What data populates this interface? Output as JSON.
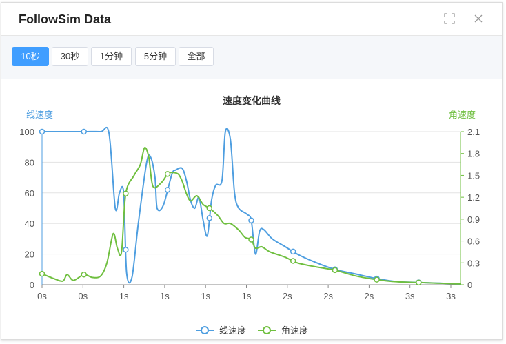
{
  "window": {
    "title": "FollowSim Data"
  },
  "toolbar": {
    "ranges": [
      "10秒",
      "30秒",
      "1分钟",
      "5分钟",
      "全部"
    ],
    "active_index": 0
  },
  "icons": {
    "fullscreen": "fullscreen-icon",
    "close": "close-icon"
  },
  "colors": {
    "linear": "#4e9ee0",
    "angular": "#6fbf3f",
    "active": "#409eff"
  },
  "chart_data": {
    "type": "line",
    "title": "速度变化曲线",
    "y_left_label": "线速度",
    "y_right_label": "角速度",
    "y_left_ticks": [
      "100",
      "80",
      "60",
      "40",
      "20",
      "0"
    ],
    "y_right_ticks": [
      "2.1",
      "1.8",
      "1.5",
      "1.2",
      "0.9",
      "0.6",
      "0.3",
      "0"
    ],
    "x_ticks": [
      "0s",
      "0s",
      "1s",
      "1s",
      "1s",
      "1s",
      "2s",
      "2s",
      "2s",
      "3s",
      "3s"
    ],
    "ylim_left": [
      0,
      100
    ],
    "ylim_right": [
      0,
      2.1
    ],
    "xlim": [
      0,
      10
    ],
    "legend": [
      "线速度",
      "角速度"
    ],
    "legend_position": "bottom",
    "series": [
      {
        "name": "线速度",
        "axis": "left",
        "points": [
          [
            0,
            100
          ],
          [
            0.5,
            100
          ],
          [
            1,
            100
          ],
          [
            1.4,
            100
          ],
          [
            1.6,
            99
          ],
          [
            1.75,
            50
          ],
          [
            1.85,
            60
          ],
          [
            1.95,
            60
          ],
          [
            2.02,
            8
          ],
          [
            2.15,
            5
          ],
          [
            2.3,
            40
          ],
          [
            2.5,
            80
          ],
          [
            2.6,
            83
          ],
          [
            2.7,
            70
          ],
          [
            2.75,
            50
          ],
          [
            2.9,
            52
          ],
          [
            3.1,
            72
          ],
          [
            3.2,
            75
          ],
          [
            3.35,
            76
          ],
          [
            3.45,
            68
          ],
          [
            3.55,
            55
          ],
          [
            3.65,
            50
          ],
          [
            3.75,
            57
          ],
          [
            3.85,
            42
          ],
          [
            3.95,
            32
          ],
          [
            4.05,
            55
          ],
          [
            4.15,
            65
          ],
          [
            4.3,
            68
          ],
          [
            4.38,
            100
          ],
          [
            4.5,
            95
          ],
          [
            4.6,
            60
          ],
          [
            4.7,
            50
          ],
          [
            4.9,
            46
          ],
          [
            5.0,
            42
          ],
          [
            5.1,
            20
          ],
          [
            5.2,
            35
          ],
          [
            5.3,
            36
          ],
          [
            5.5,
            30
          ],
          [
            5.8,
            25
          ],
          [
            6.1,
            20
          ],
          [
            6.5,
            15
          ],
          [
            7,
            10
          ],
          [
            7.5,
            7
          ],
          [
            8,
            4
          ],
          [
            8.5,
            2
          ],
          [
            9,
            1.5
          ],
          [
            9.5,
            1
          ],
          [
            10,
            0.5
          ]
        ]
      },
      {
        "name": "角速度",
        "axis": "right",
        "points": [
          [
            0,
            0.15
          ],
          [
            0.3,
            0.08
          ],
          [
            0.5,
            0.05
          ],
          [
            0.6,
            0.14
          ],
          [
            0.75,
            0.06
          ],
          [
            1.0,
            0.14
          ],
          [
            1.2,
            0.1
          ],
          [
            1.4,
            0.12
          ],
          [
            1.55,
            0.3
          ],
          [
            1.7,
            0.7
          ],
          [
            1.8,
            0.5
          ],
          [
            1.9,
            0.45
          ],
          [
            2.0,
            1.25
          ],
          [
            2.2,
            1.5
          ],
          [
            2.35,
            1.65
          ],
          [
            2.45,
            1.88
          ],
          [
            2.55,
            1.75
          ],
          [
            2.65,
            1.35
          ],
          [
            2.85,
            1.4
          ],
          [
            3.0,
            1.52
          ],
          [
            3.1,
            1.54
          ],
          [
            3.25,
            1.52
          ],
          [
            3.35,
            1.42
          ],
          [
            3.45,
            1.25
          ],
          [
            3.55,
            1.15
          ],
          [
            3.7,
            1.22
          ],
          [
            3.85,
            1.1
          ],
          [
            4.0,
            1.05
          ],
          [
            4.2,
            0.95
          ],
          [
            4.35,
            0.84
          ],
          [
            4.5,
            0.84
          ],
          [
            4.7,
            0.75
          ],
          [
            4.85,
            0.65
          ],
          [
            5.0,
            0.62
          ],
          [
            5.1,
            0.5
          ],
          [
            5.25,
            0.52
          ],
          [
            5.45,
            0.45
          ],
          [
            5.8,
            0.38
          ],
          [
            6.1,
            0.3
          ],
          [
            6.5,
            0.25
          ],
          [
            7,
            0.2
          ],
          [
            7.5,
            0.12
          ],
          [
            8,
            0.07
          ],
          [
            8.5,
            0.04
          ],
          [
            9,
            0.03
          ],
          [
            9.5,
            0.02
          ],
          [
            10,
            0.01
          ]
        ]
      }
    ],
    "markers": [
      {
        "series": "线速度",
        "x": [
          0,
          1,
          2,
          3,
          4,
          5,
          6,
          7,
          8,
          9
        ]
      },
      {
        "series": "角速度",
        "x": [
          0,
          1,
          2,
          3,
          4,
          5,
          6,
          7,
          8,
          9
        ]
      }
    ]
  }
}
